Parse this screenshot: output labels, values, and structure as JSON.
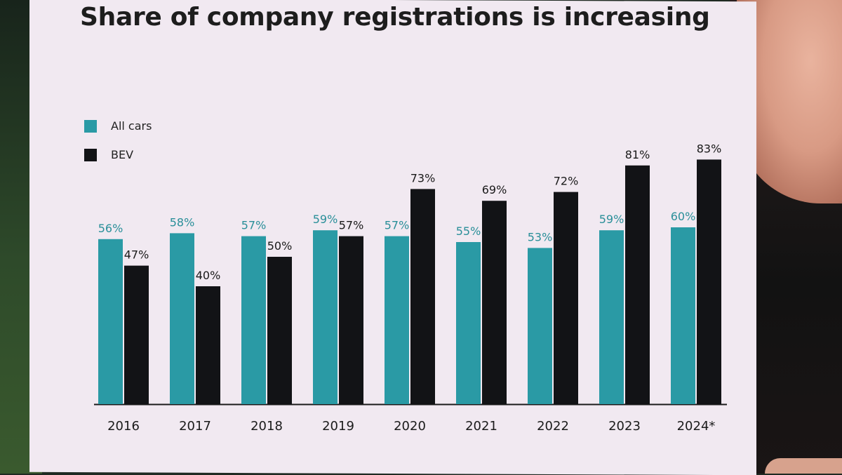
{
  "title": "Share of company registrations is increasing",
  "legend": [
    {
      "label": "All cars",
      "color": "#2a9aa5"
    },
    {
      "label": "BEV",
      "color": "#121316"
    }
  ],
  "chart_data": {
    "type": "bar",
    "title": "Share of company registrations is increasing",
    "xlabel": "",
    "ylabel": "",
    "ylim": [
      0,
      100
    ],
    "categories": [
      "2016",
      "2017",
      "2018",
      "2019",
      "2020",
      "2021",
      "2022",
      "2023",
      "2024*"
    ],
    "series": [
      {
        "name": "All cars",
        "color": "#2a9aa5",
        "values": [
          56,
          58,
          57,
          59,
          57,
          55,
          53,
          59,
          60
        ],
        "labels": [
          "56%",
          "58%",
          "57%",
          "59%",
          "57%",
          "55%",
          "53%",
          "59%",
          "60%"
        ]
      },
      {
        "name": "BEV",
        "color": "#121316",
        "values": [
          47,
          40,
          50,
          57,
          73,
          69,
          72,
          81,
          83
        ],
        "labels": [
          "47%",
          "40%",
          "50%",
          "57%",
          "73%",
          "69%",
          "72%",
          "81%",
          "83%"
        ]
      }
    ],
    "grid": false,
    "legend_position": "top-left"
  }
}
